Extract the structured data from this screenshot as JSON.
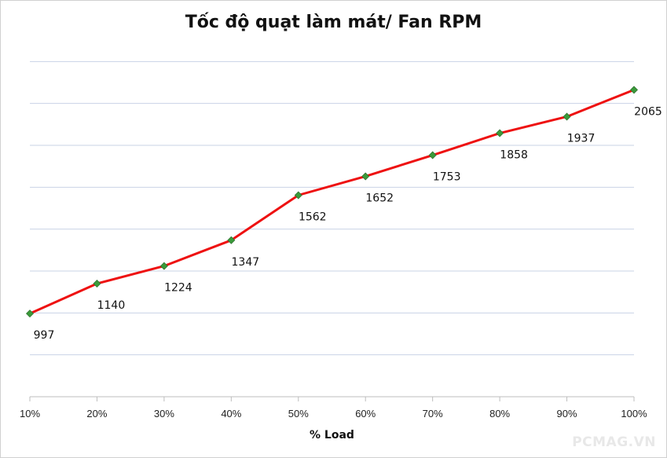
{
  "chart_data": {
    "type": "line",
    "title": "Tốc độ quạt làm mát/ Fan RPM",
    "xlabel": "% Load",
    "ylabel": "",
    "categories": [
      "10%",
      "20%",
      "30%",
      "40%",
      "50%",
      "60%",
      "70%",
      "80%",
      "90%",
      "100%"
    ],
    "series": [
      {
        "values": [
          997,
          1140,
          1224,
          1347,
          1562,
          1652,
          1753,
          1858,
          1937,
          2065
        ]
      }
    ],
    "data_labels": [
      "997",
      "1140",
      "1224",
      "1347",
      "1562",
      "1652",
      "1753",
      "1858",
      "1937",
      "2065"
    ],
    "ylim": [
      600,
      2400
    ],
    "grid": true,
    "legend": "none",
    "colors": {
      "line": "#ee1111",
      "marker": "#3a9a3a",
      "grid": "#c9d3e6"
    }
  },
  "watermark": "PCMAG.VN"
}
